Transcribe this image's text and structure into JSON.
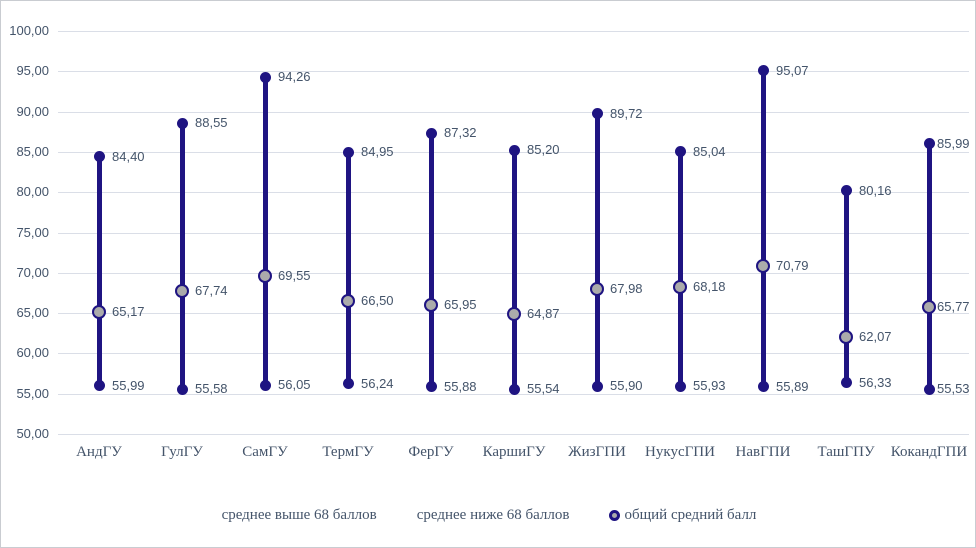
{
  "chart_data": {
    "type": "stock-hilo",
    "title": "",
    "xlabel": "",
    "ylabel": "",
    "categories": [
      "АндГУ",
      "ГулГУ",
      "СамГУ",
      "ТермГУ",
      "ФерГУ",
      "КаршиГУ",
      "ЖизГПИ",
      "НукусГПИ",
      "НавГПИ",
      "ТашГПУ",
      "КокандГПИ"
    ],
    "series": [
      {
        "name": "среднее выше 68 баллов",
        "role": "high",
        "values": [
          84.4,
          88.55,
          94.26,
          84.95,
          87.32,
          85.2,
          89.72,
          85.04,
          95.07,
          80.16,
          85.99
        ],
        "labels": [
          "84,40",
          "88,55",
          "94,26",
          "84,95",
          "87,32",
          "85,20",
          "89,72",
          "85,04",
          "95,07",
          "80,16",
          "85,99"
        ]
      },
      {
        "name": "среднее ниже 68 баллов",
        "role": "low",
        "values": [
          55.99,
          55.58,
          56.05,
          56.24,
          55.88,
          55.54,
          55.9,
          55.93,
          55.89,
          56.33,
          55.53
        ],
        "labels": [
          "55,99",
          "55,58",
          "56,05",
          "56,24",
          "55,88",
          "55,54",
          "55,90",
          "55,93",
          "55,89",
          "56,33",
          "55,53"
        ]
      },
      {
        "name": "общий средний балл",
        "role": "mid",
        "values": [
          65.17,
          67.74,
          69.55,
          66.5,
          65.95,
          64.87,
          67.98,
          68.18,
          70.79,
          62.07,
          65.77
        ],
        "labels": [
          "65,17",
          "67,74",
          "69,55",
          "66,50",
          "65,95",
          "64,87",
          "67,98",
          "68,18",
          "70,79",
          "62,07",
          "65,77"
        ]
      }
    ],
    "ylim": [
      50,
      100
    ],
    "ytick_step": 5,
    "ytick_labels": [
      "100,00",
      "95,00",
      "90,00",
      "85,00",
      "80,00",
      "75,00",
      "70,00",
      "65,00",
      "60,00",
      "55,00",
      "50,00"
    ],
    "grid": true,
    "legend_position": "bottom",
    "legend": [
      {
        "label": "среднее выше 68 баллов",
        "marker": "none"
      },
      {
        "label": "среднее ниже 68 баллов",
        "marker": "none"
      },
      {
        "label": "общий средний балл",
        "marker": "circle-gray-navy"
      }
    ],
    "colors": {
      "range_line": "#1F1482",
      "end_dot": "#1F1482",
      "mid_fill": "#ABABAB",
      "mid_border": "#1F1482",
      "grid": "#DADEE7",
      "text": "#44546A"
    }
  }
}
